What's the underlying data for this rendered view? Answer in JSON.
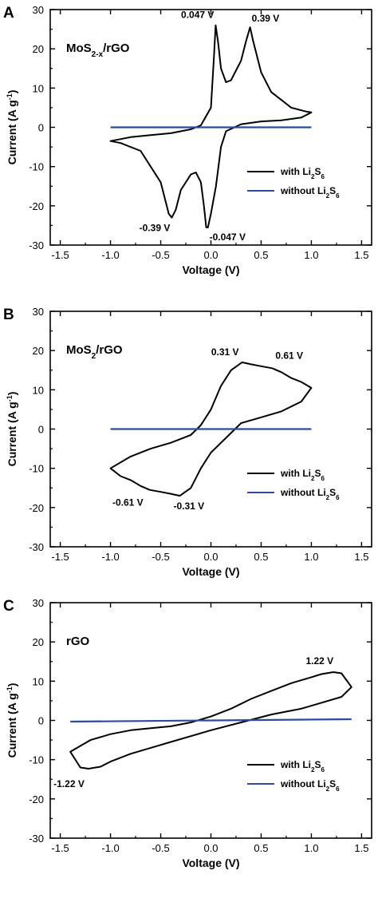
{
  "colors": {
    "with_series": "#000000",
    "without_series": "#2b4aa3",
    "axis": "#000000"
  },
  "chart_data": [
    {
      "type": "line",
      "panel_label": "A",
      "sample_label": {
        "main": "MoS",
        "sub": "2-x",
        "tail": "/rGO"
      },
      "xlabel": "Voltage (V)",
      "ylabel": "Current (A g",
      "ylabel_sup": "-1",
      "ylabel_tail": ")",
      "xlim": [
        -1.6,
        1.6
      ],
      "ylim": [
        -30,
        30
      ],
      "xticks": [
        -1.5,
        -1.0,
        -0.5,
        0.0,
        0.5,
        1.0,
        1.5
      ],
      "xtick_labels": [
        "-1.5",
        "-1.0",
        "-0.5",
        "0.0",
        "0.5",
        "1.0",
        "1.5"
      ],
      "yticks": [
        -30,
        -20,
        -10,
        0,
        10,
        20,
        30
      ],
      "ytick_labels": [
        "-30",
        "-20",
        "-10",
        "0",
        "10",
        "20",
        "30"
      ],
      "legend": [
        {
          "series": "with",
          "prefix": "with Li",
          "s1": "2",
          "mid": "S",
          "s2": "6"
        },
        {
          "series": "without",
          "prefix": "without Li",
          "s1": "2",
          "mid": "S",
          "s2": "6"
        }
      ],
      "series": [
        {
          "key": "with",
          "x": [
            -1.0,
            -0.8,
            -0.6,
            -0.4,
            -0.2,
            -0.1,
            0.0,
            0.03,
            0.047,
            0.07,
            0.1,
            0.15,
            0.2,
            0.3,
            0.35,
            0.39,
            0.42,
            0.5,
            0.6,
            0.8,
            0.95,
            1.0,
            0.9,
            0.7,
            0.5,
            0.3,
            0.15,
            0.1,
            0.05,
            0.0,
            -0.03,
            -0.047,
            -0.07,
            -0.1,
            -0.15,
            -0.2,
            -0.3,
            -0.35,
            -0.39,
            -0.42,
            -0.5,
            -0.7,
            -0.9,
            -1.0
          ],
          "y": [
            -3.5,
            -2.5,
            -2.0,
            -1.5,
            -0.5,
            0.5,
            5.0,
            18.0,
            26.0,
            22.0,
            15.0,
            11.5,
            12.0,
            17.0,
            22.0,
            25.5,
            22.0,
            14.0,
            9.0,
            5.0,
            4.0,
            3.8,
            2.5,
            1.8,
            1.5,
            0.8,
            -1.0,
            -5.0,
            -15.0,
            -22.0,
            -25.5,
            -25.5,
            -20.0,
            -14.0,
            -11.5,
            -12.0,
            -16.0,
            -21.0,
            -23.0,
            -22.0,
            -14.0,
            -6.0,
            -4.0,
            -3.5
          ]
        },
        {
          "key": "without",
          "x": [
            -1.0,
            1.0
          ],
          "y": [
            0.0,
            0.0
          ]
        }
      ],
      "annotations": [
        {
          "text": "0.047 V",
          "x": 0.047,
          "y": 26.0,
          "anchor": "end",
          "dx": -2,
          "dy": -9
        },
        {
          "text": "0.39 V",
          "x": 0.39,
          "y": 25.5,
          "anchor": "start",
          "dx": 2,
          "dy": -7
        },
        {
          "text": "-0.39 V",
          "x": -0.39,
          "y": -23.0,
          "anchor": "end",
          "dx": -2,
          "dy": 17
        },
        {
          "text": "-0.047 V",
          "x": -0.047,
          "y": -25.5,
          "anchor": "start",
          "dx": 4,
          "dy": 16
        }
      ]
    },
    {
      "type": "line",
      "panel_label": "B",
      "sample_label": {
        "main": "MoS",
        "sub": "2",
        "tail": "/rGO"
      },
      "xlabel": "Voltage (V)",
      "ylabel": "Current (A g",
      "ylabel_sup": "-1",
      "ylabel_tail": ")",
      "xlim": [
        -1.6,
        1.6
      ],
      "ylim": [
        -30,
        30
      ],
      "xticks": [
        -1.5,
        -1.0,
        -0.5,
        0.0,
        0.5,
        1.0,
        1.5
      ],
      "xtick_labels": [
        "-1.5",
        "-1.0",
        "-0.5",
        "0.0",
        "0.5",
        "1.0",
        "1.5"
      ],
      "yticks": [
        -30,
        -20,
        -10,
        0,
        10,
        20,
        30
      ],
      "ytick_labels": [
        "-30",
        "-20",
        "-10",
        "0",
        "10",
        "20",
        "30"
      ],
      "legend": [
        {
          "series": "with",
          "prefix": "with Li",
          "s1": "2",
          "mid": "S",
          "s2": "6"
        },
        {
          "series": "without",
          "prefix": "without Li",
          "s1": "2",
          "mid": "S",
          "s2": "6"
        }
      ],
      "series": [
        {
          "key": "with",
          "x": [
            -1.0,
            -0.8,
            -0.6,
            -0.4,
            -0.2,
            -0.1,
            0.0,
            0.1,
            0.2,
            0.31,
            0.4,
            0.5,
            0.61,
            0.7,
            0.8,
            0.9,
            1.0,
            0.9,
            0.7,
            0.5,
            0.3,
            0.2,
            0.1,
            0.0,
            -0.1,
            -0.2,
            -0.31,
            -0.4,
            -0.5,
            -0.61,
            -0.7,
            -0.8,
            -0.9,
            -1.0
          ],
          "y": [
            -10.0,
            -7.0,
            -5.0,
            -3.5,
            -1.5,
            1.0,
            5.0,
            11.0,
            15.0,
            17.0,
            16.5,
            16.0,
            15.5,
            14.5,
            13.0,
            12.0,
            10.5,
            7.0,
            4.5,
            3.0,
            1.5,
            -1.0,
            -3.5,
            -6.0,
            -10.0,
            -15.0,
            -17.0,
            -16.5,
            -16.0,
            -15.5,
            -14.5,
            -13.0,
            -12.0,
            -10.0
          ]
        },
        {
          "key": "without",
          "x": [
            -1.0,
            1.0
          ],
          "y": [
            0.0,
            0.0
          ]
        }
      ],
      "annotations": [
        {
          "text": "0.31 V",
          "x": 0.31,
          "y": 17.0,
          "anchor": "end",
          "dx": -4,
          "dy": -9
        },
        {
          "text": "0.61 V",
          "x": 0.61,
          "y": 15.5,
          "anchor": "start",
          "dx": 4,
          "dy": -12
        },
        {
          "text": "-0.61 V",
          "x": -0.61,
          "y": -15.5,
          "anchor": "end",
          "dx": -8,
          "dy": 20
        },
        {
          "text": "-0.31 V",
          "x": -0.31,
          "y": -17.0,
          "anchor": "start",
          "dx": -8,
          "dy": 17
        }
      ]
    },
    {
      "type": "line",
      "panel_label": "C",
      "sample_label": {
        "main": "rGO",
        "sub": "",
        "tail": ""
      },
      "xlabel": "Voltage (V)",
      "ylabel": "Current (A g",
      "ylabel_sup": "-1",
      "ylabel_tail": ")",
      "xlim": [
        -1.6,
        1.6
      ],
      "ylim": [
        -30,
        30
      ],
      "xticks": [
        -1.5,
        -1.0,
        -0.5,
        0.0,
        0.5,
        1.0,
        1.5
      ],
      "xtick_labels": [
        "-1.5",
        "-1.0",
        "-0.5",
        "0.0",
        "0.5",
        "1.0",
        "1.5"
      ],
      "yticks": [
        -30,
        -20,
        -10,
        0,
        10,
        20,
        30
      ],
      "ytick_labels": [
        "-30",
        "-20",
        "-10",
        "0",
        "10",
        "20",
        "30"
      ],
      "legend": [
        {
          "series": "with",
          "prefix": "with Li",
          "s1": "2",
          "mid": "S",
          "s2": "6"
        },
        {
          "series": "without",
          "prefix": "without Li",
          "s1": "2",
          "mid": "S",
          "s2": "6"
        }
      ],
      "series": [
        {
          "key": "with",
          "x": [
            -1.4,
            -1.2,
            -1.0,
            -0.8,
            -0.6,
            -0.4,
            -0.2,
            0.0,
            0.2,
            0.4,
            0.6,
            0.8,
            1.0,
            1.1,
            1.22,
            1.3,
            1.4,
            1.3,
            1.1,
            0.9,
            0.6,
            0.3,
            0.0,
            -0.2,
            -0.4,
            -0.6,
            -0.8,
            -1.0,
            -1.1,
            -1.22,
            -1.3,
            -1.4
          ],
          "y": [
            -8.0,
            -5.0,
            -3.5,
            -2.5,
            -2.0,
            -1.5,
            -0.5,
            1.0,
            3.0,
            5.5,
            7.5,
            9.5,
            11.0,
            11.8,
            12.3,
            12.0,
            8.5,
            6.0,
            4.5,
            3.0,
            1.5,
            -0.5,
            -2.5,
            -4.0,
            -5.5,
            -7.0,
            -8.5,
            -10.5,
            -11.8,
            -12.3,
            -12.0,
            -8.0
          ]
        },
        {
          "key": "without",
          "x": [
            -1.4,
            1.4
          ],
          "y": [
            -0.3,
            0.3
          ]
        }
      ],
      "annotations": [
        {
          "text": "1.22 V",
          "x": 1.22,
          "y": 12.3,
          "anchor": "end",
          "dx": 0,
          "dy": -10
        },
        {
          "text": "-1.22 V",
          "x": -1.22,
          "y": -12.3,
          "anchor": "end",
          "dx": -5,
          "dy": 23
        }
      ]
    }
  ]
}
